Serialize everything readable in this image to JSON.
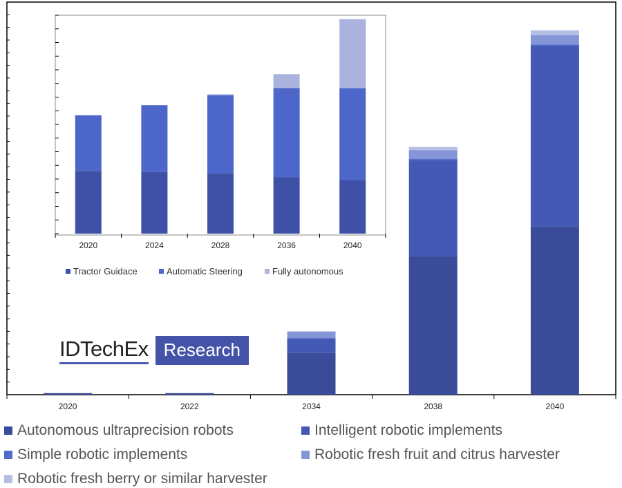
{
  "chart_data": [
    {
      "type": "bar",
      "stacked": true,
      "categories": [
        "2020",
        "2022",
        "2034",
        "2038",
        "2040"
      ],
      "ylim": [
        0,
        100
      ],
      "series": [
        {
          "name": "Autonomous ultraprecision robots",
          "color": "#3a4b9a",
          "values": [
            0.4,
            0.4,
            10.6,
            35.2,
            42.8
          ]
        },
        {
          "name": "Intelligent robotic implements",
          "color": "#4458b5",
          "values": [
            0,
            0,
            3.7,
            24.6,
            46.1
          ]
        },
        {
          "name": "Simple robotic implements",
          "color": "#4f6bcb",
          "values": [
            0,
            0,
            0.2,
            0.3,
            0.3
          ]
        },
        {
          "name": "Robotic fresh fruit and citrus harvester",
          "color": "#8596d8",
          "values": [
            0,
            0,
            1.6,
            2.2,
            2.4
          ]
        },
        {
          "name": "Robotic fresh berry or similar harvester",
          "color": "#b6bee5",
          "values": [
            0,
            0,
            0,
            0.8,
            1.2
          ]
        }
      ],
      "legend_position": "bottom",
      "grid": false
    },
    {
      "type": "bar",
      "stacked": true,
      "categories": [
        "2020",
        "2024",
        "2028",
        "2036",
        "2040"
      ],
      "ylim": [
        0,
        100
      ],
      "series": [
        {
          "name": "Tractor Guidace",
          "color": "#3e51a6",
          "values": [
            28.7,
            28.2,
            27.5,
            25.8,
            24.5
          ]
        },
        {
          "name": "Automatic Steering",
          "color": "#4d66c9",
          "values": [
            25.5,
            30.6,
            35.9,
            40.9,
            42.1
          ]
        },
        {
          "name": "Fully autonomous",
          "color": "#aab3de",
          "values": [
            0,
            0,
            0.4,
            6.3,
            31.6
          ]
        }
      ],
      "legend_position": "bottom",
      "grid": false
    }
  ],
  "logo": {
    "name": "IDTechEx",
    "tag": "Research"
  }
}
